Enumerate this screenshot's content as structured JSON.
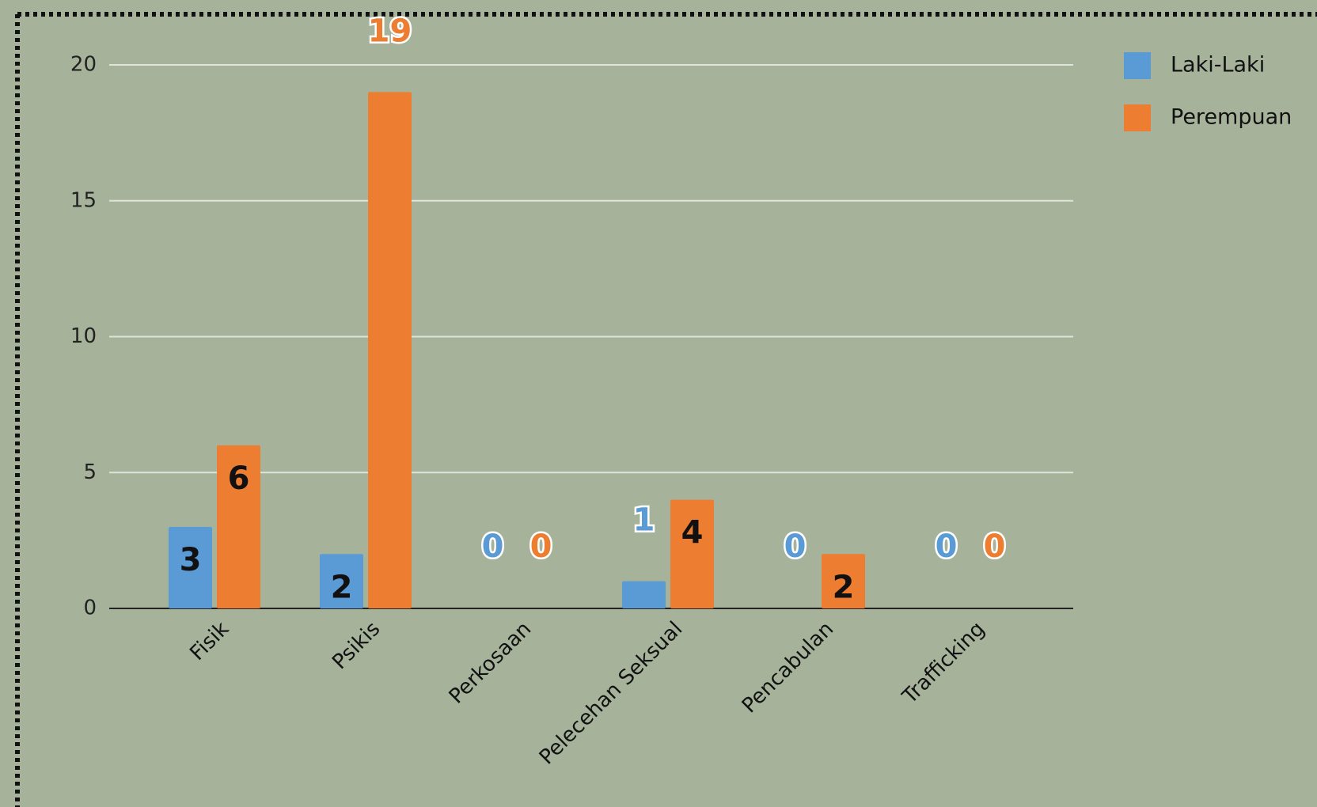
{
  "chart_data": {
    "type": "bar",
    "categories": [
      "Fisik",
      "Psikis",
      "Perkosaan",
      "Pelecehan Seksual",
      "Pencabulan",
      "Trafficking"
    ],
    "series": [
      {
        "name": "Laki-Laki",
        "color": "#5b9bd5",
        "values": [
          3,
          2,
          0,
          1,
          0,
          0
        ]
      },
      {
        "name": "Perempuan",
        "color": "#ed7d31",
        "values": [
          6,
          19,
          0,
          4,
          2,
          0
        ]
      }
    ],
    "ylim": [
      0,
      20
    ],
    "yticks": [
      0,
      5,
      10,
      15,
      20
    ],
    "grid": true,
    "legend": "right"
  }
}
